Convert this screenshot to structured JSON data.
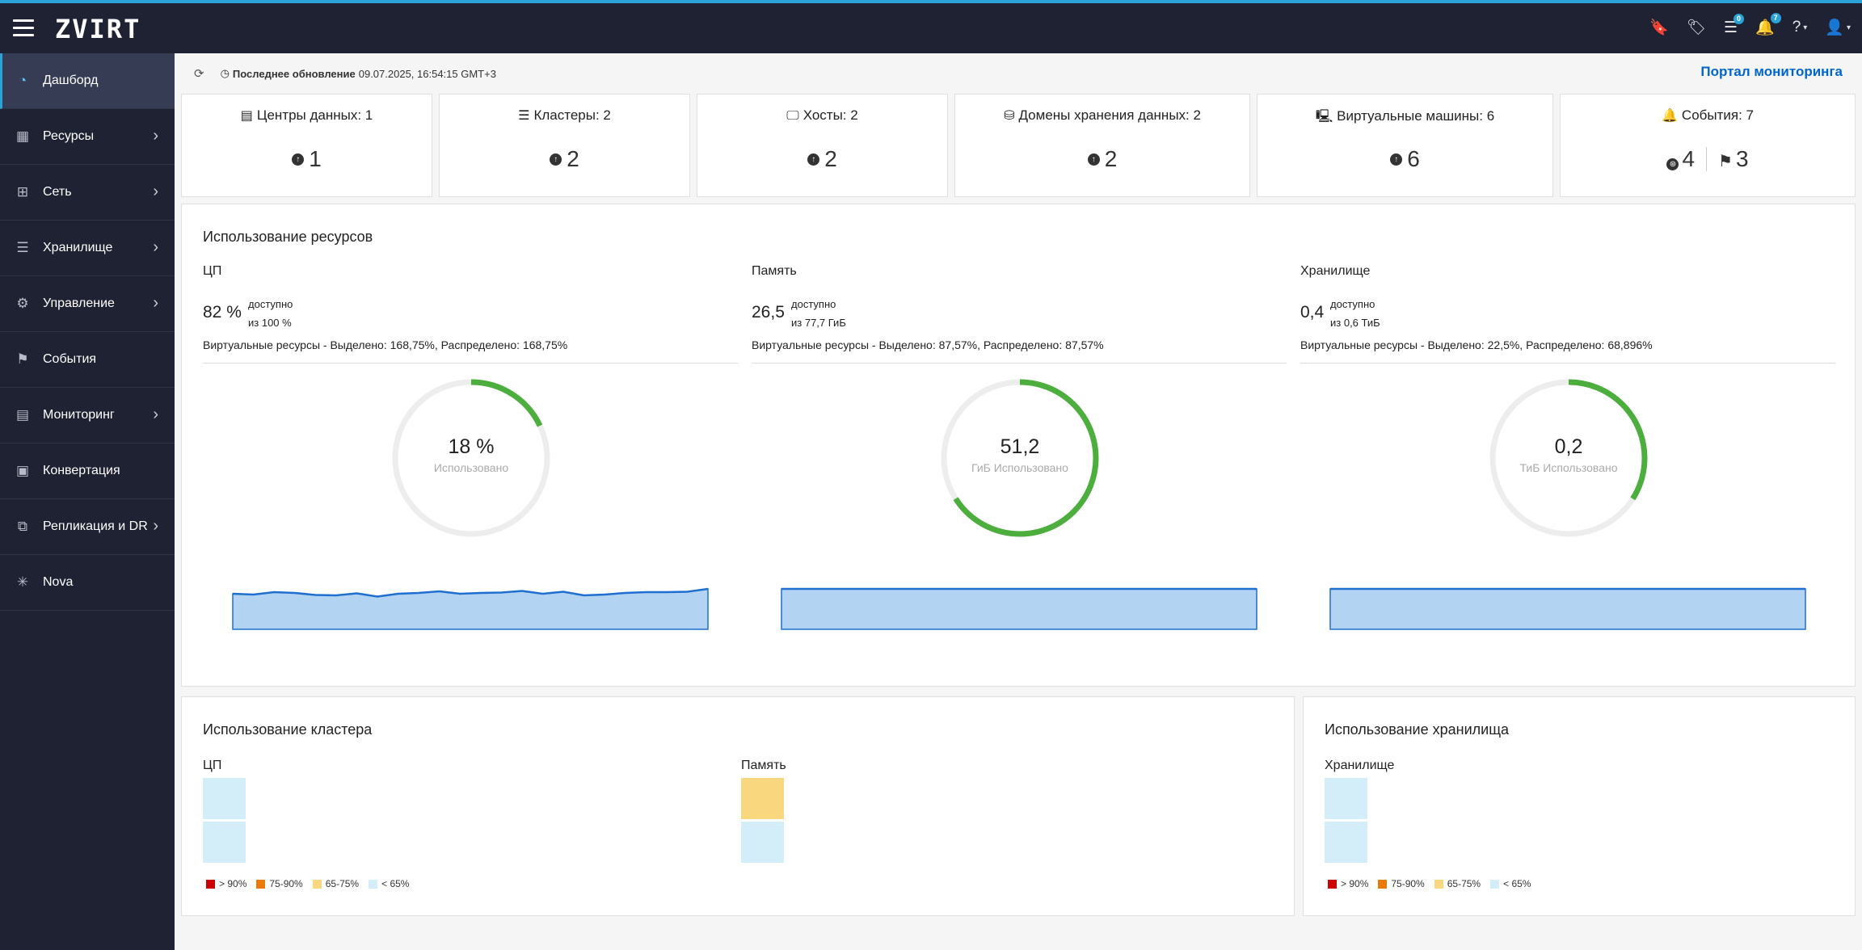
{
  "header": {
    "brand": "ZVIRT",
    "icons": [
      {
        "name": "bookmark-icon",
        "glyph": "🔖",
        "badge": ""
      },
      {
        "name": "tags-icon",
        "glyph": "🏷",
        "badge": ""
      },
      {
        "name": "tasks-icon",
        "glyph": "☰",
        "badge": "0"
      },
      {
        "name": "bell-icon",
        "glyph": "🔔",
        "badge": "7"
      },
      {
        "name": "help-icon",
        "glyph": "?",
        "badge": ""
      },
      {
        "name": "user-icon",
        "glyph": "👤",
        "badge": ""
      }
    ]
  },
  "sidebar": {
    "items": [
      {
        "label": "Дашборд",
        "icon": "dashboard-icon",
        "glyph": "◔",
        "active": true,
        "chevron": false
      },
      {
        "label": "Ресурсы",
        "icon": "chip-icon",
        "glyph": "▦",
        "active": false,
        "chevron": true
      },
      {
        "label": "Сеть",
        "icon": "network-icon",
        "glyph": "⊞",
        "active": false,
        "chevron": true
      },
      {
        "label": "Хранилище",
        "icon": "database-icon",
        "glyph": "☰",
        "active": false,
        "chevron": true
      },
      {
        "label": "Управление",
        "icon": "gear-icon",
        "glyph": "⚙",
        "active": false,
        "chevron": true
      },
      {
        "label": "События",
        "icon": "flag-icon",
        "glyph": "⚑",
        "active": false,
        "chevron": false
      },
      {
        "label": "Мониторинг",
        "icon": "monitor-chart-icon",
        "glyph": "▤",
        "active": false,
        "chevron": true
      },
      {
        "label": "Конвертация",
        "icon": "convert-icon",
        "glyph": "▣",
        "active": false,
        "chevron": false
      },
      {
        "label": "Репликация и DR",
        "icon": "replication-icon",
        "glyph": "⧉",
        "active": false,
        "chevron": true
      },
      {
        "label": "Nova",
        "icon": "nova-icon",
        "glyph": "✳",
        "active": false,
        "chevron": false
      }
    ]
  },
  "refresh": {
    "label": "Последнее обновление",
    "value": "09.07.2025, 16:54:15 GMT+3",
    "portal_link": "Портал мониторинга"
  },
  "summary": [
    {
      "title": "Центры данных: 1",
      "icon": "datacenter-icon",
      "glyph": "▤",
      "count": "1",
      "flag_count": ""
    },
    {
      "title": "Кластеры: 2",
      "icon": "cluster-icon",
      "glyph": "☰",
      "count": "2",
      "flag_count": ""
    },
    {
      "title": "Хосты: 2",
      "icon": "host-icon",
      "glyph": "🖵",
      "count": "2",
      "flag_count": ""
    },
    {
      "title": "Домены хранения данных: 2",
      "icon": "storage-domain-icon",
      "glyph": "⛁",
      "count": "2",
      "flag_count": ""
    },
    {
      "title": "Виртуальные машины: 6",
      "icon": "vm-icon",
      "glyph": "🖳",
      "count": "6",
      "flag_count": ""
    },
    {
      "title": "События: 7",
      "icon": "bell-icon",
      "glyph": "🔔",
      "count": "4",
      "flag_count": "3"
    }
  ],
  "resources": {
    "title": "Использование ресурсов",
    "columns": [
      {
        "name": "ЦП",
        "big": "82 %",
        "avail1": "доступно",
        "avail2": "из 100 %",
        "virt": "Виртуальные ресурсы - Выделено: 168,75%, Распределено: 168,75%",
        "donut_value": "18 %",
        "donut_label": "Использовано",
        "used_fraction": 0.18,
        "spark": [
          0.88,
          0.86,
          0.92,
          0.9,
          0.85,
          0.84,
          0.89,
          0.81,
          0.88,
          0.9,
          0.94,
          0.88,
          0.9,
          0.91,
          0.95,
          0.88,
          0.93,
          0.84,
          0.86,
          0.9,
          0.92,
          0.92,
          0.93,
          1.0
        ]
      },
      {
        "name": "Память",
        "big": "26,5",
        "avail1": "доступно",
        "avail2": "из 77,7 ГиБ",
        "virt": "Виртуальные ресурсы - Выделено: 87,57%, Распределено: 87,57%",
        "donut_value": "51,2",
        "donut_label": "ГиБ Использовано",
        "used_fraction": 0.66,
        "spark": [
          1,
          1
        ]
      },
      {
        "name": "Хранилище",
        "big": "0,4",
        "avail1": "доступно",
        "avail2": "из 0,6 ТиБ",
        "virt": "Виртуальные ресурсы - Выделено: 22,5%, Распределено: 68,896%",
        "donut_value": "0,2",
        "donut_label": "ТиБ Использовано",
        "used_fraction": 0.34,
        "spark": [
          1,
          1
        ]
      }
    ]
  },
  "cluster_usage": {
    "title": "Использование кластера",
    "cpu_label": "ЦП",
    "mem_label": "Память",
    "cpu_cells": [
      "#d3edf9",
      "#d3edf9"
    ],
    "mem_cells": [
      "#f8d77e",
      "#d3edf9"
    ]
  },
  "storage_usage": {
    "title": "Использование хранилища",
    "label": "Хранилище",
    "cells": [
      "#d3edf9",
      "#d3edf9"
    ]
  },
  "legend": [
    {
      "label": "> 90%",
      "color": "#cc0000"
    },
    {
      "label": "75-90%",
      "color": "#ec7a08"
    },
    {
      "label": "65-75%",
      "color": "#f8d77e"
    },
    {
      "label": "< 65%",
      "color": "#d3edf9"
    }
  ],
  "colors": {
    "accent": "#2aa4d8",
    "donut_used": "#4cae3c",
    "donut_track": "#ededed",
    "spark_fill": "#b3d3f2",
    "spark_line": "#1f6fd0"
  }
}
